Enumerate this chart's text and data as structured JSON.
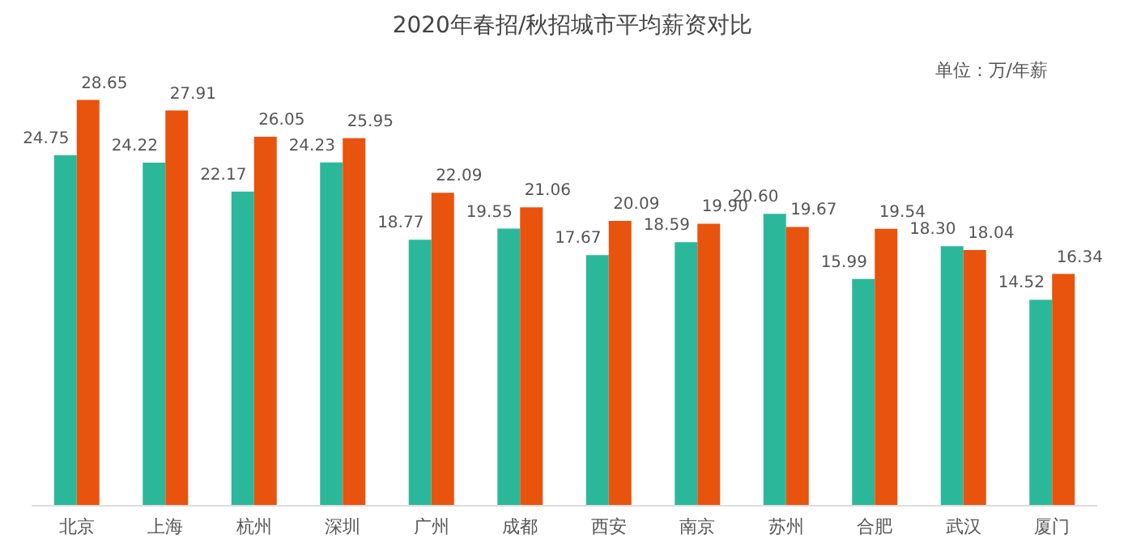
{
  "chart_data": {
    "type": "bar",
    "title": "2020年春招/秋招城市平均薪资对比",
    "annotations": [
      "单位：万/年薪"
    ],
    "categories": [
      "北京",
      "上海",
      "杭州",
      "深圳",
      "广州",
      "成都",
      "西安",
      "南京",
      "苏州",
      "合肥",
      "武汉",
      "厦门"
    ],
    "series": [
      {
        "color": "#2bb89a",
        "values": [
          24.75,
          24.22,
          22.17,
          24.23,
          18.77,
          19.55,
          17.67,
          18.59,
          20.6,
          15.99,
          18.3,
          14.52
        ],
        "value_labels": [
          "24.75",
          "24.22",
          "22.17",
          "24.23",
          "18.77",
          "19.55",
          "17.67",
          "18.59",
          "20.60",
          "15.99",
          "18.30",
          "14.52"
        ]
      },
      {
        "color": "#e8530e",
        "values": [
          28.65,
          27.91,
          26.05,
          25.95,
          22.09,
          21.06,
          20.09,
          19.9,
          19.67,
          19.54,
          18.04,
          16.34
        ],
        "value_labels": [
          "28.65",
          "27.91",
          "26.05",
          "25.95",
          "22.09",
          "21.06",
          "20.09",
          "19.90",
          "19.67",
          "19.54",
          "18.04",
          "16.34"
        ]
      }
    ]
  }
}
